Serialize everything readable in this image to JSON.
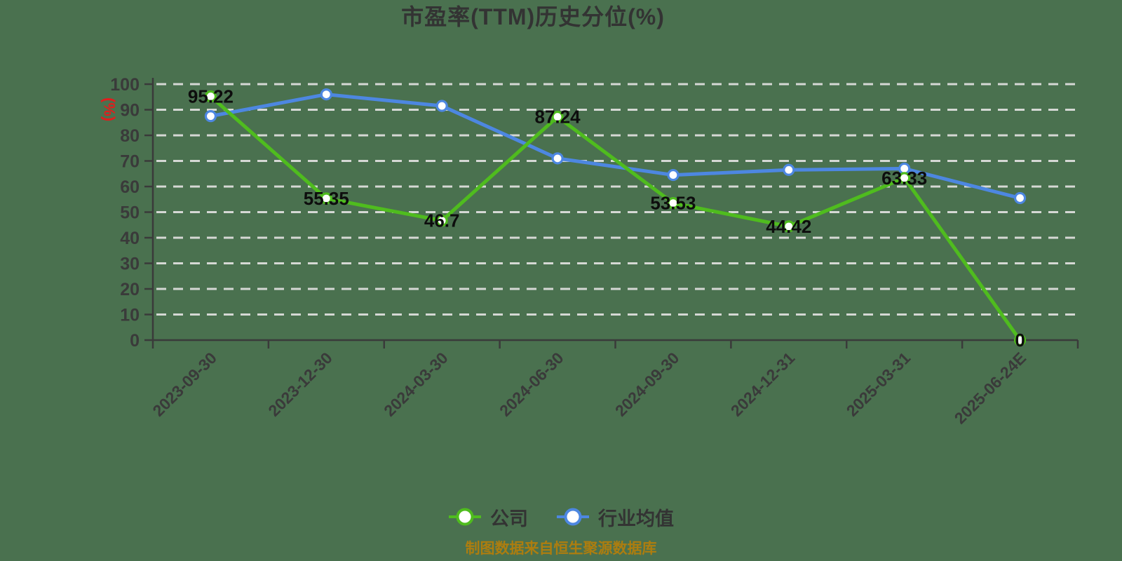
{
  "page": {
    "title": "市盈率(TTM)历史分位(%)",
    "footer_note": "制图数据来自恒生聚源数据库"
  },
  "colors": {
    "background": "#4a714f",
    "title_text": "#333333",
    "axis_line": "#3a3a3a",
    "axis_text": "#3a3a3a",
    "grid_line": "#d5d8d4",
    "data_label_text": "#0d0d0d",
    "y_axis_unit_text": "#e11d1d",
    "company_series": "#4fbc1e",
    "industry_series": "#4d87e1",
    "marker_fill": "#ffffff",
    "footer_text": "#ad7d0f"
  },
  "y_axis": {
    "unit_label": "(%)",
    "ticks": [
      0,
      10,
      20,
      30,
      40,
      50,
      60,
      70,
      80,
      90,
      100
    ]
  },
  "chart_data": {
    "type": "line",
    "title": "市盈率(TTM)历史分位(%)",
    "xlabel": "",
    "ylabel": "(%)",
    "ylim": [
      0,
      100
    ],
    "ytick_step": 10,
    "grid": "horizontal-dashed",
    "legend_position": "bottom",
    "categories": [
      "2023-09-30",
      "2023-12-30",
      "2024-03-30",
      "2024-06-30",
      "2024-09-30",
      "2024-12-31",
      "2025-03-31",
      "2025-06-24E"
    ],
    "series": [
      {
        "name": "公司",
        "color": "#4fbc1e",
        "values": [
          95.22,
          55.35,
          46.7,
          87.24,
          53.53,
          44.42,
          63.33,
          0
        ],
        "data_labels": true
      },
      {
        "name": "行业均值",
        "color": "#4d87e1",
        "values": [
          87.5,
          96,
          91.5,
          71,
          64.5,
          66.5,
          67,
          55.5
        ],
        "data_labels": false
      }
    ]
  },
  "legend": {
    "items": [
      {
        "label": "公司",
        "color": "#4fbc1e"
      },
      {
        "label": "行业均值",
        "color": "#4d87e1"
      }
    ]
  }
}
